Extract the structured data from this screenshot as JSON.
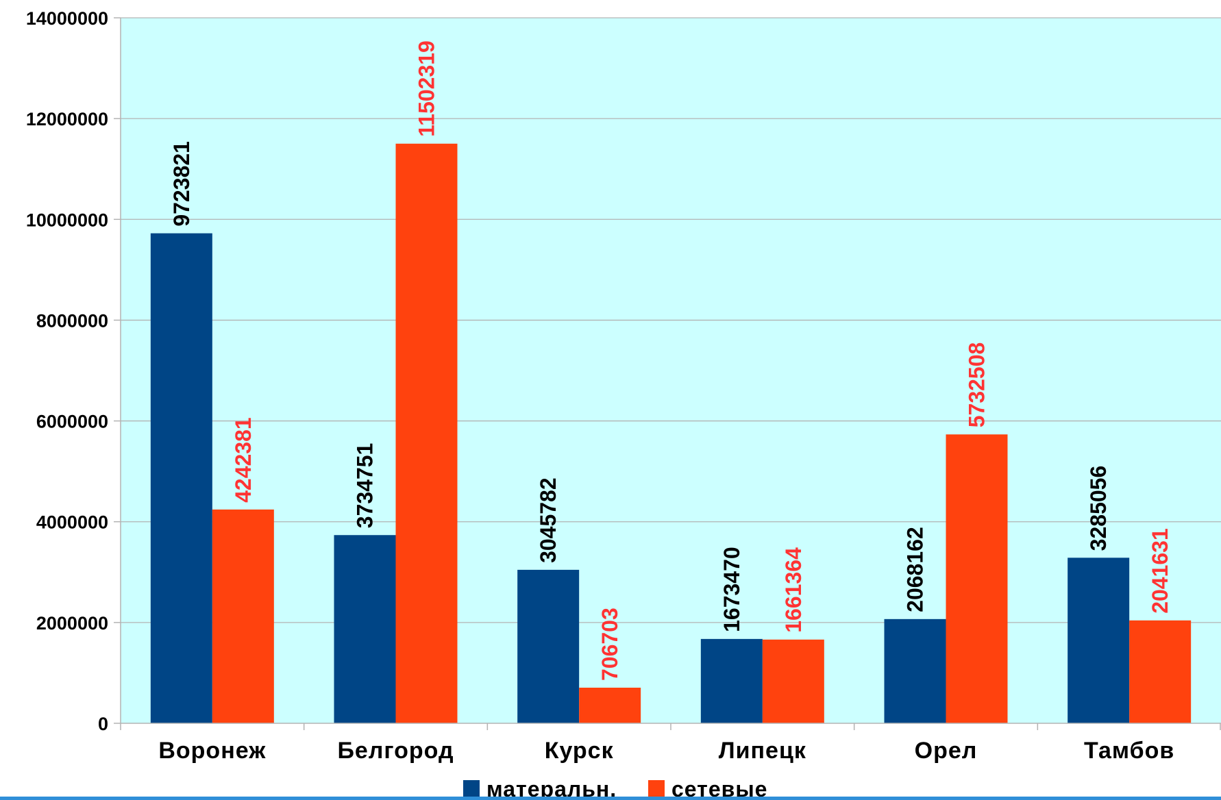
{
  "chart_data": {
    "type": "bar",
    "title": "",
    "xlabel": "",
    "ylabel": "",
    "categories": [
      "Воронеж",
      "Белгород",
      "Курск",
      "Липецк",
      "Орел",
      "Тамбов"
    ],
    "series": [
      {
        "name": "матеральн.",
        "color": "#004586",
        "label_color": "#000000",
        "values": [
          9723821,
          3734751,
          3045782,
          1673470,
          2068162,
          3285056
        ]
      },
      {
        "name": "сетевые",
        "color": "#ff420e",
        "label_color": "#ff3333",
        "values": [
          4242381,
          11502319,
          706703,
          1661364,
          5732508,
          2041631
        ]
      }
    ],
    "ylim": [
      0,
      14000000
    ],
    "yticks": [
      0,
      2000000,
      4000000,
      6000000,
      8000000,
      10000000,
      12000000,
      14000000
    ],
    "ytick_labels": [
      "0",
      "2000000",
      "4000000",
      "6000000",
      "8000000",
      "10000000",
      "12000000",
      "14000000"
    ],
    "grid": true,
    "plot_background": "#ccffff",
    "grid_color": "#b3b3b3",
    "data_labels": "vertical, above bars",
    "legend_position": "bottom-center"
  }
}
